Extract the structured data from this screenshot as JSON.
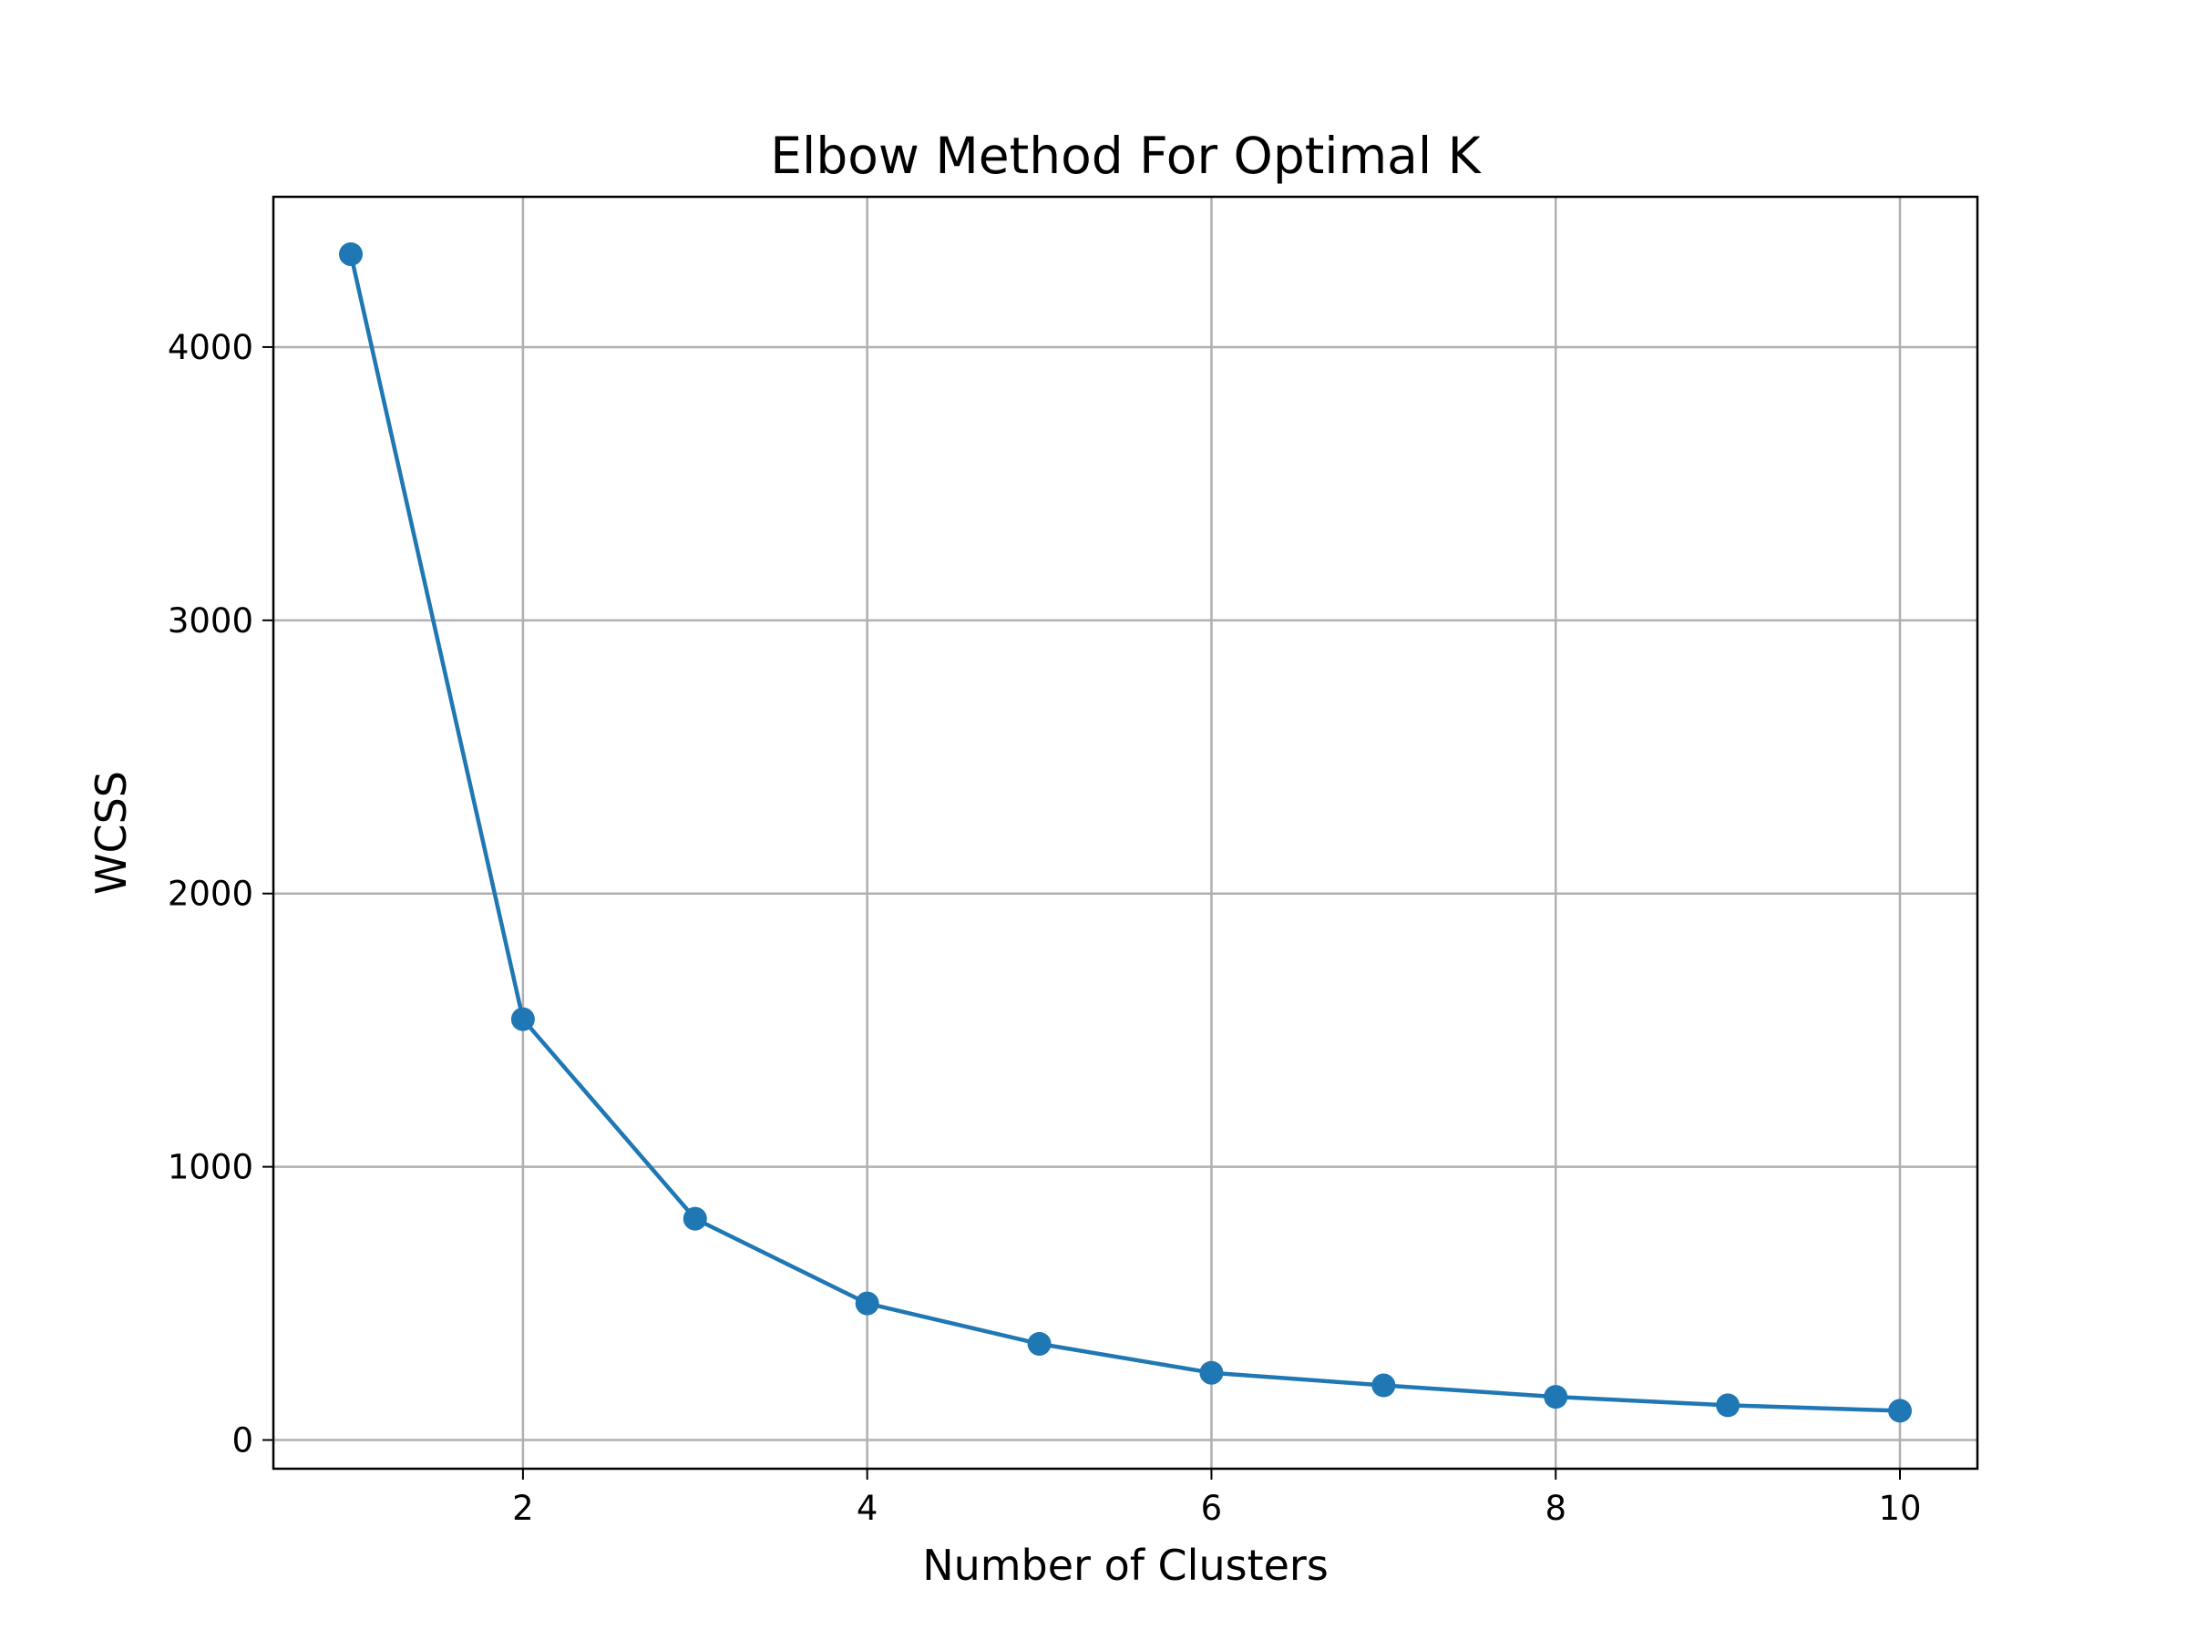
{
  "chart_data": {
    "type": "line",
    "title": "Elbow Method For Optimal K",
    "xlabel": "Number of Clusters",
    "ylabel": "WCSS",
    "x": [
      1,
      2,
      3,
      4,
      5,
      6,
      7,
      8,
      9,
      10
    ],
    "series": [
      {
        "values": [
          4340,
          1540,
          810,
          500,
          352,
          246,
          200,
          158,
          127,
          107
        ],
        "color": "#1f77b4",
        "marker": "circle"
      }
    ],
    "xlim": [
      0.55,
      10.45
    ],
    "ylim": [
      -105,
      4550
    ],
    "xticks": [
      2,
      4,
      6,
      8,
      10
    ],
    "xtick_labels": [
      "2",
      "4",
      "6",
      "8",
      "10"
    ],
    "yticks": [
      0,
      1000,
      2000,
      3000,
      4000
    ],
    "ytick_labels": [
      "0",
      "1000",
      "2000",
      "3000",
      "4000"
    ],
    "grid": true,
    "legend": false
  }
}
